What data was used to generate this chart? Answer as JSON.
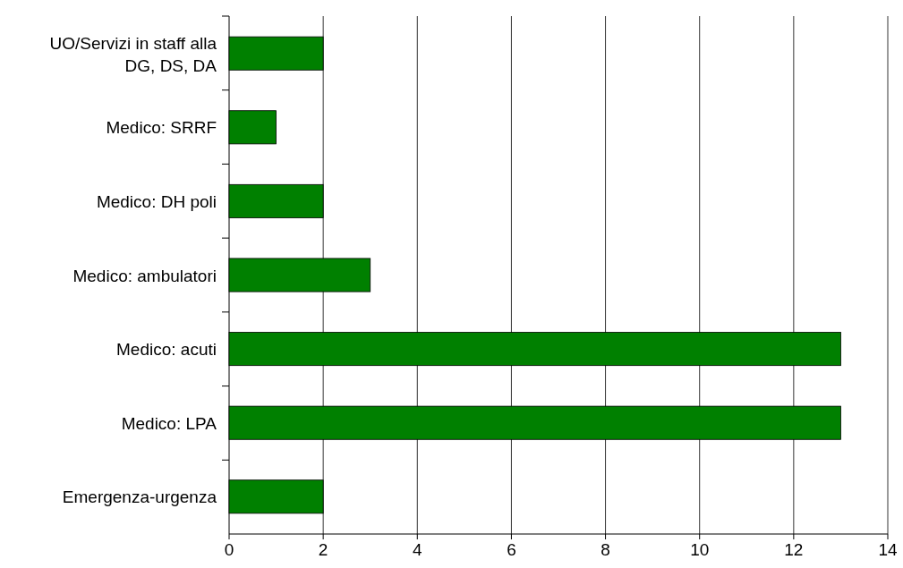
{
  "chart_data": {
    "type": "bar",
    "orientation": "horizontal",
    "categories": [
      "UO/Servizi in staff alla DG, DS, DA",
      "Medico: SRRF",
      "Medico: DH poli",
      "Medico: ambulatori",
      "Medico: acuti",
      "Medico: LPA",
      "Emergenza-urgenza"
    ],
    "values": [
      2,
      1,
      2,
      3,
      13,
      13,
      2
    ],
    "color": "#008000",
    "xlim": [
      0,
      14
    ],
    "xticks": [
      0,
      2,
      4,
      6,
      8,
      10,
      12,
      14
    ],
    "grid": "x"
  }
}
